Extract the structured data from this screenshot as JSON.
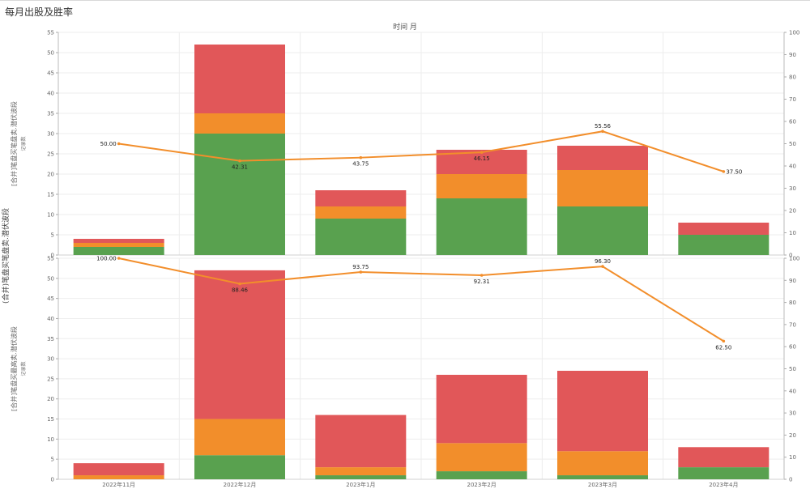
{
  "title": "每月出股及胜率",
  "column_header": "时间 月",
  "row_header": "(合并)笔盘买笔盘卖.潜伏波段",
  "colors": {
    "green": "#59a14f",
    "orange": "#f28e2b",
    "red": "#e15759",
    "line": "#f28e2b"
  },
  "chart_data": [
    {
      "type": "bar",
      "stacked": true,
      "ylabel": "[合并]笔盘买笔盘卖.潜伏波段",
      "ylabel_sub": "记录数",
      "categories": [
        "2022年11月",
        "2022年12月",
        "2023年1月",
        "2023年2月",
        "2023年3月",
        "2023年4月"
      ],
      "series": [
        {
          "color": "#59a14f",
          "values": [
            2,
            30,
            9,
            14,
            12,
            5
          ]
        },
        {
          "color": "#f28e2b",
          "values": [
            1,
            5,
            3,
            6,
            9,
            0
          ]
        },
        {
          "color": "#e15759",
          "values": [
            1,
            17,
            4,
            6,
            6,
            3
          ]
        }
      ],
      "ylim": [
        0,
        55
      ],
      "yticks": [
        0,
        5,
        10,
        15,
        20,
        25,
        30,
        35,
        40,
        45,
        50,
        55
      ],
      "line": {
        "values": [
          50.0,
          42.31,
          43.75,
          46.15,
          55.56,
          37.5
        ],
        "labels": [
          "50.00",
          "42.31",
          "43.75",
          "46.15",
          "55.56",
          "37.50"
        ],
        "label_pos": [
          "left",
          "below",
          "below",
          "below",
          "above",
          "right"
        ],
        "y2lim": [
          0,
          100
        ],
        "y2ticks": [
          0,
          10,
          20,
          30,
          40,
          50,
          60,
          70,
          80,
          90,
          100
        ]
      }
    },
    {
      "type": "bar",
      "stacked": true,
      "ylabel": "[合并]笔盘买最高卖.潜伏波段",
      "ylabel_sub": "记录数",
      "categories": [
        "2022年11月",
        "2022年12月",
        "2023年1月",
        "2023年2月",
        "2023年3月",
        "2023年4月"
      ],
      "series": [
        {
          "color": "#59a14f",
          "values": [
            0,
            6,
            1,
            2,
            1,
            3
          ]
        },
        {
          "color": "#f28e2b",
          "values": [
            1,
            9,
            2,
            7,
            6,
            0
          ]
        },
        {
          "color": "#e15759",
          "values": [
            3,
            37,
            13,
            17,
            20,
            5
          ]
        }
      ],
      "ylim": [
        0,
        55
      ],
      "yticks": [
        0,
        5,
        10,
        15,
        20,
        25,
        30,
        35,
        40,
        45,
        50,
        55
      ],
      "line": {
        "values": [
          100.0,
          88.46,
          93.75,
          92.31,
          96.3,
          62.5
        ],
        "labels": [
          "100.00",
          "88.46",
          "93.75",
          "92.31",
          "96.30",
          "62.50"
        ],
        "label_pos": [
          "left",
          "below",
          "above",
          "below",
          "above",
          "below"
        ],
        "y2lim": [
          0,
          100
        ],
        "y2ticks": [
          0,
          10,
          20,
          30,
          40,
          50,
          60,
          70,
          80,
          90,
          100
        ]
      }
    }
  ]
}
